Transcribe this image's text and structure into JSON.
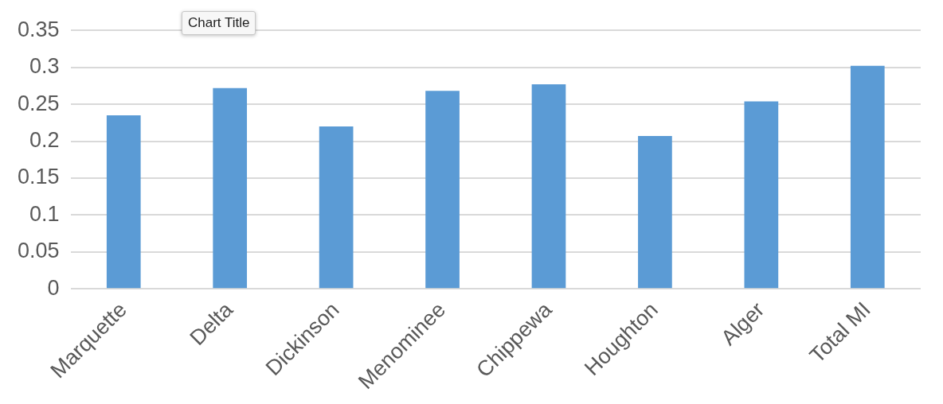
{
  "chart_data": {
    "type": "bar",
    "annotations": [
      "Chart Title"
    ],
    "categories": [
      "Marquette",
      "Delta",
      "Dickinson",
      "Menominee",
      "Chippewa",
      "Houghton",
      "Alger",
      "Total MI"
    ],
    "values": [
      0.235,
      0.272,
      0.22,
      0.268,
      0.277,
      0.207,
      0.254,
      0.302
    ],
    "color": "#5b9bd5",
    "ylim": [
      0,
      0.35
    ],
    "yticks": [
      0,
      0.05,
      0.1,
      0.15,
      0.2,
      0.25,
      0.3,
      0.35
    ],
    "grid": "y",
    "legend": false
  }
}
